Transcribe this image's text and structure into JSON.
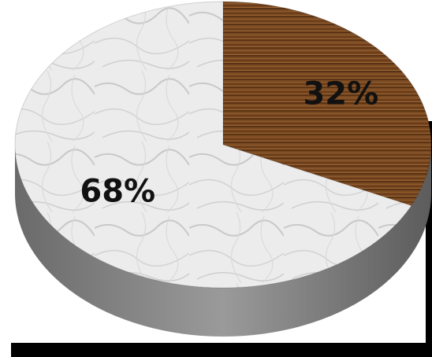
{
  "chart_data": {
    "type": "pie",
    "style": "3d",
    "slices": [
      {
        "label": "32%",
        "value": 32,
        "color": "#7a4a22",
        "texture": "wood"
      },
      {
        "label": "68%",
        "value": 68,
        "color": "#e8e8e8",
        "texture": "marble"
      }
    ],
    "title": "",
    "legend": "none"
  }
}
